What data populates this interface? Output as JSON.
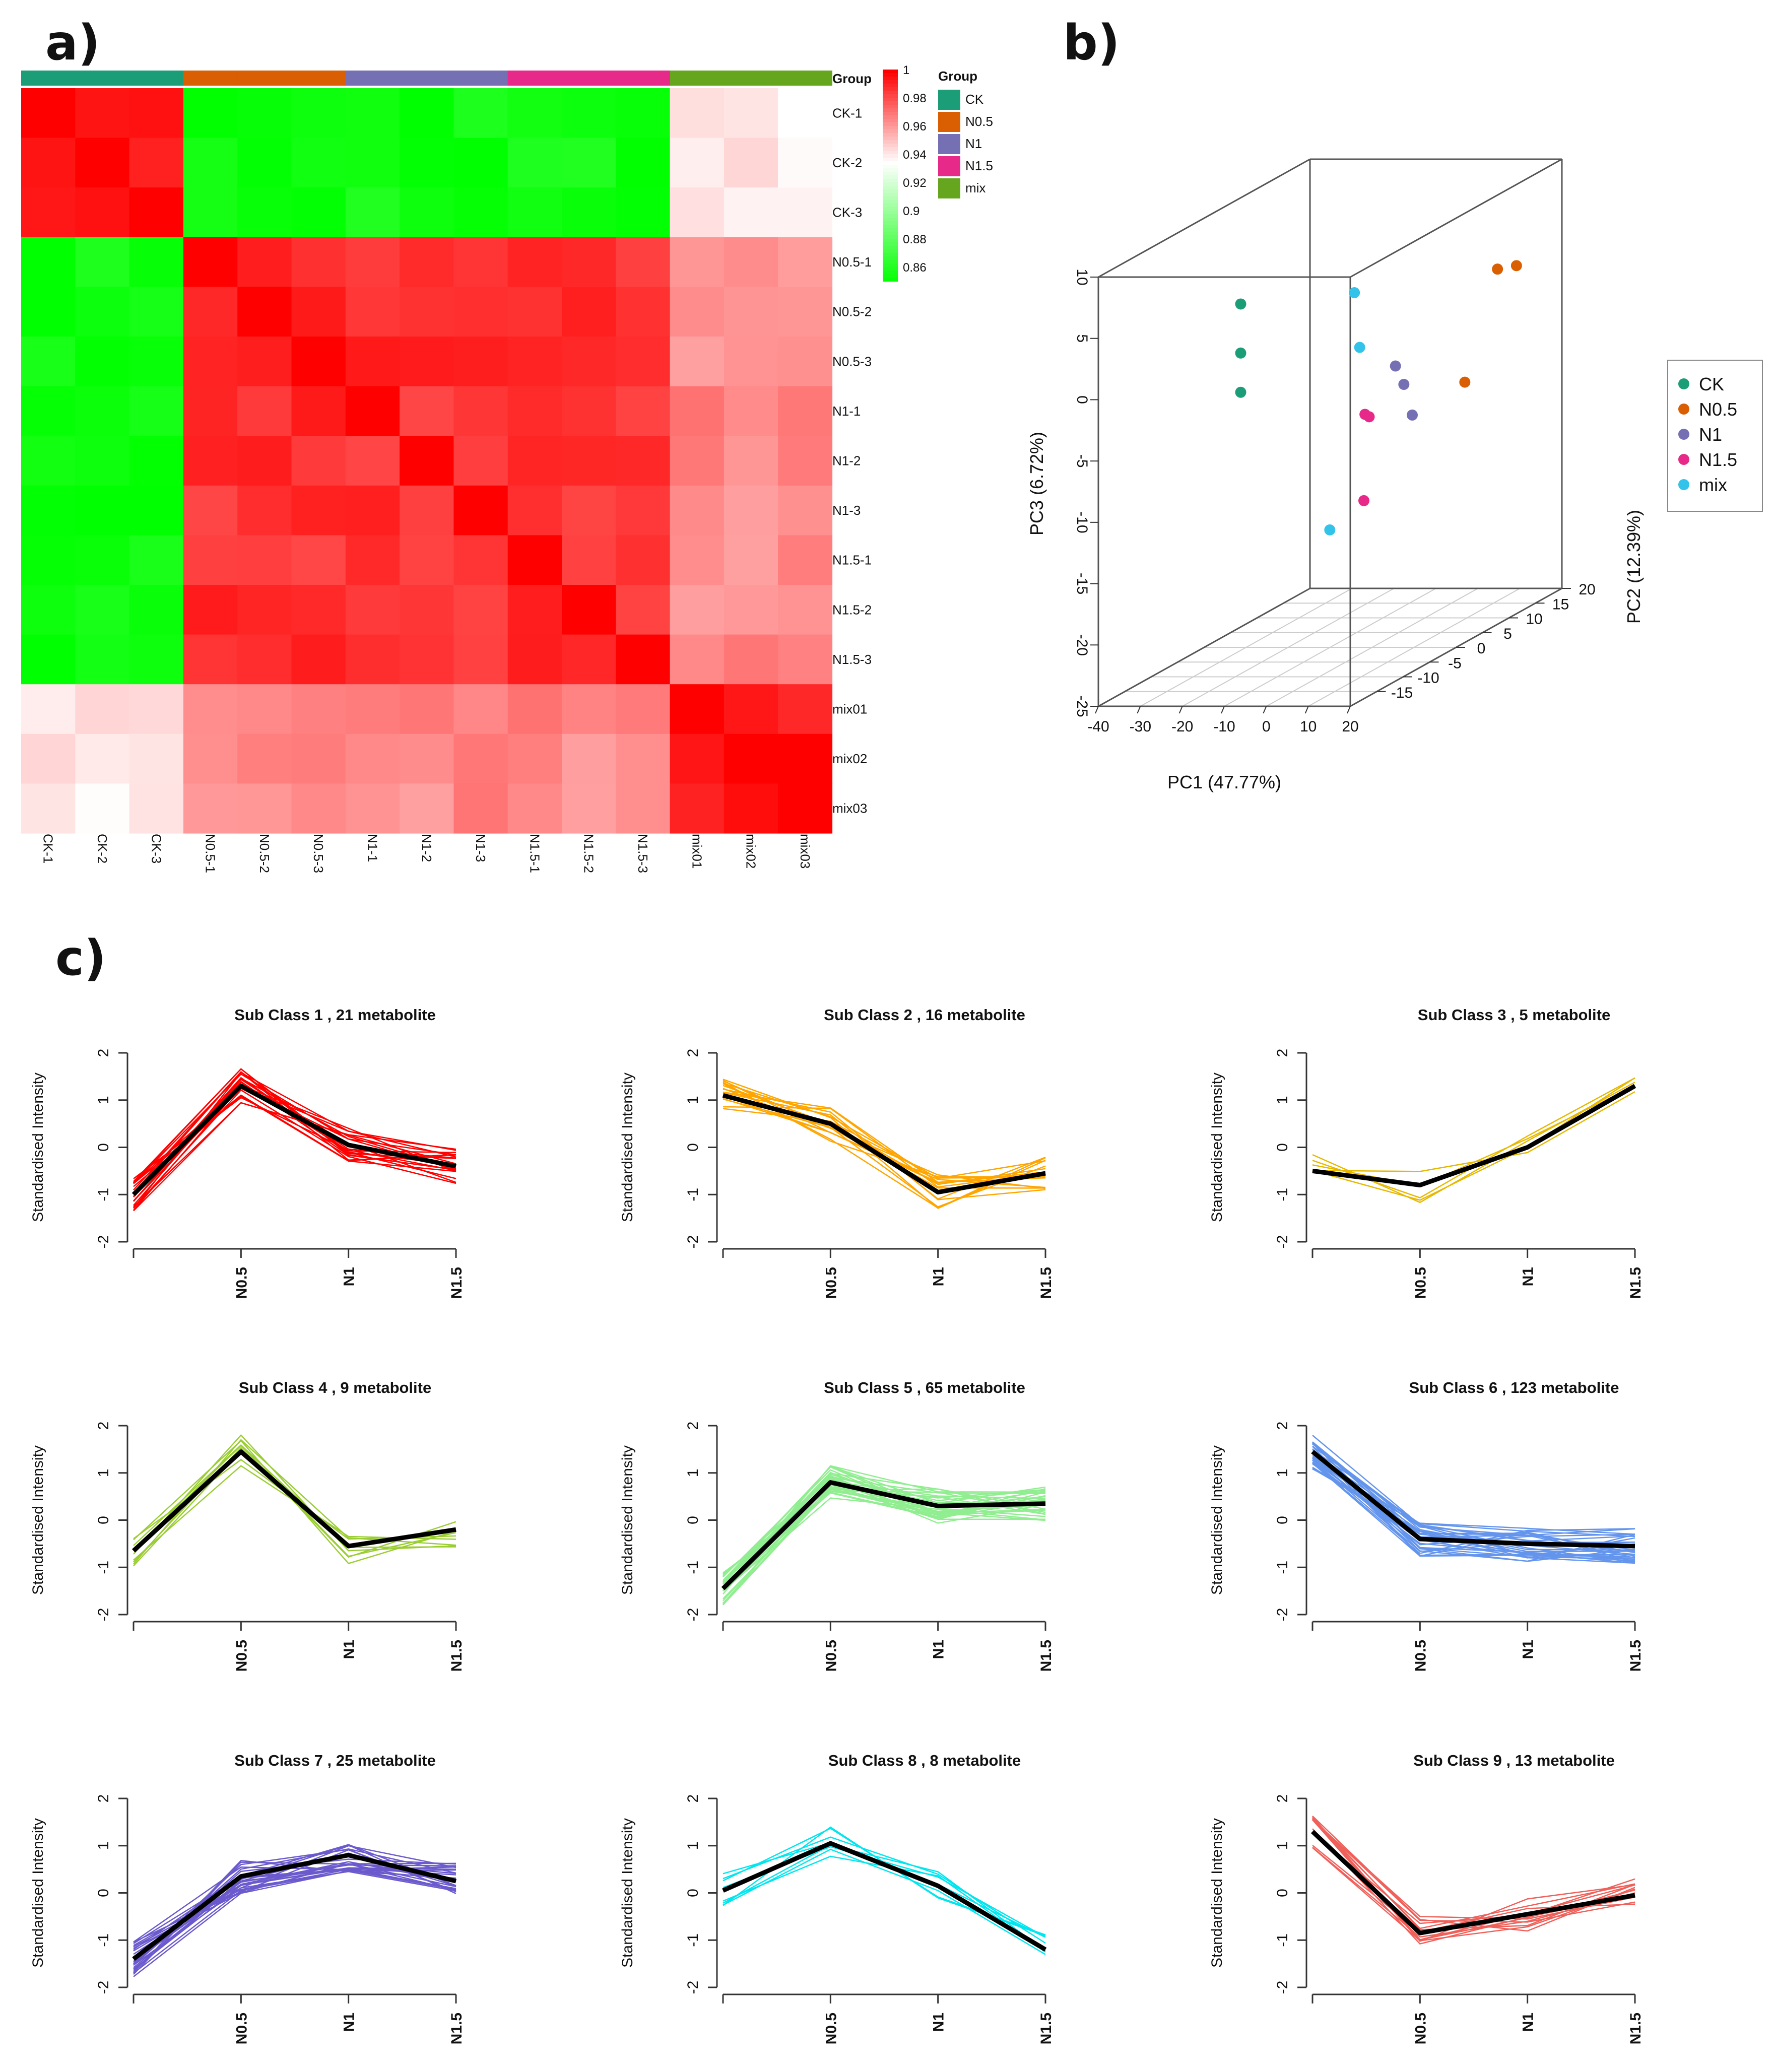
{
  "panels": {
    "a": "a)",
    "b": "b)",
    "c": "c)"
  },
  "group_colors": {
    "CK": "#1b9e77",
    "N0.5": "#d95f02",
    "N1": "#7570b3",
    "N1.5": "#e7298a",
    "mix": "#66a61e"
  },
  "chart_data": [
    {
      "type": "heatmap",
      "samples": [
        "CK-1",
        "CK-2",
        "CK-3",
        "N0.5-1",
        "N0.5-2",
        "N0.5-3",
        "N1-1",
        "N1-2",
        "N1-3",
        "N1.5-1",
        "N1.5-2",
        "N1.5-3",
        "mix01",
        "mix02",
        "mix03"
      ],
      "groups": [
        "CK",
        "CK",
        "CK",
        "N0.5",
        "N0.5",
        "N0.5",
        "N1",
        "N1",
        "N1",
        "N1.5",
        "N1.5",
        "N1.5",
        "mix",
        "mix",
        "mix"
      ],
      "scale_ticks": [
        "1",
        "0.98",
        "0.96",
        "0.94",
        "0.92",
        "0.9",
        "0.88",
        "0.86"
      ],
      "scale_range": [
        0.85,
        1.0
      ],
      "group_bar_label": "Group",
      "legend_title": "Group",
      "legend_entries": [
        "CK",
        "N0.5",
        "N1",
        "N1.5",
        "mix"
      ],
      "block_values": {
        "CK-CK": 0.995,
        "CK-N": 0.855,
        "CK-mix": 0.94,
        "N-N": 0.988,
        "N-mix": 0.965,
        "mix-mix": 0.995
      }
    },
    {
      "type": "scatter",
      "subtype": "3d-pca",
      "xlabel": "PC1 (47.77%)",
      "ylabel": "PC2 (12.39%)",
      "zlabel": "PC3 (6.72%)",
      "x_ticks": [
        "-40",
        "-30",
        "-20",
        "-10",
        "0",
        "10",
        "20"
      ],
      "y_ticks": [
        "-15",
        "-10",
        "-5",
        "0",
        "5",
        "10",
        "15",
        "20"
      ],
      "z_ticks": [
        "-25",
        "-20",
        "-15",
        "-10",
        "-5",
        "0",
        "5",
        "10"
      ],
      "xlim": [
        -40,
        20
      ],
      "ylim": [
        -20,
        20
      ],
      "zlim": [
        -25,
        10
      ],
      "legend": [
        "CK",
        "N0.5",
        "N1",
        "N1.5",
        "mix"
      ],
      "points": [
        {
          "group": "CK",
          "x": -25,
          "y": -5,
          "z": 4.2
        },
        {
          "group": "CK",
          "x": -25,
          "y": -5,
          "z": 0.2
        },
        {
          "group": "CK",
          "x": -25,
          "y": -5,
          "z": -3.0
        },
        {
          "group": "N0.5",
          "x": 16,
          "y": 11,
          "z": 3.2
        },
        {
          "group": "N0.5",
          "x": 18,
          "y": 13,
          "z": 3.0
        },
        {
          "group": "N0.5",
          "x": 12,
          "y": 8,
          "z": -5.3
        },
        {
          "group": "N1",
          "x": -2,
          "y": 6,
          "z": -3.5
        },
        {
          "group": "N1",
          "x": 0,
          "y": 6,
          "z": -5.0
        },
        {
          "group": "N1",
          "x": 2,
          "y": 6,
          "z": -7.5
        },
        {
          "group": "N1.5",
          "x": -8,
          "y": 5,
          "z": -7.2
        },
        {
          "group": "N1.5",
          "x": -7,
          "y": 5,
          "z": -7.4
        },
        {
          "group": "N1.5",
          "x": -7,
          "y": 4,
          "z": -14.0
        },
        {
          "group": "mix",
          "x": -8,
          "y": 3,
          "z": 3.2
        },
        {
          "group": "mix",
          "x": -8,
          "y": 4,
          "z": -1.5
        },
        {
          "group": "mix",
          "x": 0,
          "y": -8,
          "z": -13.5
        }
      ]
    },
    {
      "type": "line",
      "title": "Sub Class  1 , 21 metabolite",
      "color": "#ff0000",
      "categories": [
        "",
        "N0.5",
        "N1",
        "N1.5"
      ],
      "ylabel": "Standardised Intensity",
      "ylim": [
        -2,
        2
      ],
      "y_ticks": [
        "-2",
        "-1",
        "0",
        "1",
        "2"
      ],
      "series": [
        {
          "name": "mean",
          "values": [
            -1.0,
            1.3,
            0.05,
            -0.4
          ]
        }
      ],
      "member_lines": 21
    },
    {
      "type": "line",
      "title": "Sub Class  4 , 9 metabolite",
      "color": "#9acd32",
      "categories": [
        "",
        "N0.5",
        "N1",
        "N1.5"
      ],
      "ylabel": "Standardised Intensity",
      "ylim": [
        -2,
        2
      ],
      "y_ticks": [
        "-2",
        "-1",
        "0",
        "1",
        "2"
      ],
      "series": [
        {
          "name": "mean",
          "values": [
            -0.65,
            1.45,
            -0.55,
            -0.2
          ]
        }
      ],
      "member_lines": 9
    },
    {
      "type": "line",
      "title": "Sub Class  7 , 25 metabolite",
      "color": "#6a5acd",
      "categories": [
        "",
        "N0.5",
        "N1",
        "N1.5"
      ],
      "ylabel": "Standardised Intensity",
      "ylim": [
        -2,
        2
      ],
      "y_ticks": [
        "-2",
        "-1",
        "0",
        "1",
        "2"
      ],
      "series": [
        {
          "name": "mean",
          "values": [
            -1.4,
            0.35,
            0.8,
            0.25
          ]
        }
      ],
      "member_lines": 25
    },
    {
      "type": "line",
      "title": "Sub Class  2 , 16 metabolite",
      "color": "#ffa500",
      "categories": [
        "",
        "N0.5",
        "N1",
        "N1.5"
      ],
      "ylabel": "Standardised Intensity",
      "ylim": [
        -2,
        2
      ],
      "y_ticks": [
        "-2",
        "-1",
        "0",
        "1",
        "2"
      ],
      "series": [
        {
          "name": "mean",
          "values": [
            1.1,
            0.5,
            -0.95,
            -0.55
          ]
        }
      ],
      "member_lines": 16
    },
    {
      "type": "line",
      "title": "Sub Class  5 , 65 metabolite",
      "color": "#90ee90",
      "categories": [
        "",
        "N0.5",
        "N1",
        "N1.5"
      ],
      "ylabel": "Standardised Intensity",
      "ylim": [
        -2,
        2
      ],
      "y_ticks": [
        "-2",
        "-1",
        "0",
        "1",
        "2"
      ],
      "series": [
        {
          "name": "mean",
          "values": [
            -1.45,
            0.8,
            0.3,
            0.35
          ]
        }
      ],
      "member_lines": 65
    },
    {
      "type": "line",
      "title": "Sub Class  8 , 8 metabolite",
      "color": "#00e5ee",
      "categories": [
        "",
        "N0.5",
        "N1",
        "N1.5"
      ],
      "ylabel": "Standardised Intensity",
      "ylim": [
        -2,
        2
      ],
      "y_ticks": [
        "-2",
        "-1",
        "0",
        "1",
        "2"
      ],
      "series": [
        {
          "name": "mean",
          "values": [
            0.05,
            1.05,
            0.15,
            -1.2
          ]
        }
      ],
      "member_lines": 8
    },
    {
      "type": "line",
      "title": "Sub Class  3 , 5 metabolite",
      "color": "#e6b800",
      "categories": [
        "",
        "N0.5",
        "N1",
        "N1.5"
      ],
      "ylabel": "Standardised Intensity",
      "ylim": [
        -2,
        2
      ],
      "y_ticks": [
        "-2",
        "-1",
        "0",
        "1",
        "2"
      ],
      "series": [
        {
          "name": "mean",
          "values": [
            -0.5,
            -0.8,
            0.0,
            1.3
          ]
        }
      ],
      "member_lines": 5
    },
    {
      "type": "line",
      "title": "Sub Class  6 , 123 metabolite",
      "color": "#6495ed",
      "categories": [
        "",
        "N0.5",
        "N1",
        "N1.5"
      ],
      "ylabel": "Standardised Intensity",
      "ylim": [
        -2,
        2
      ],
      "y_ticks": [
        "-2",
        "-1",
        "0",
        "1",
        "2"
      ],
      "series": [
        {
          "name": "mean",
          "values": [
            1.45,
            -0.4,
            -0.5,
            -0.55
          ]
        }
      ],
      "member_lines": 123
    },
    {
      "type": "line",
      "title": "Sub Class  9 , 13 metabolite",
      "color": "#f0605a",
      "categories": [
        "",
        "N0.5",
        "N1",
        "N1.5"
      ],
      "ylabel": "Standardised Intensity",
      "ylim": [
        -2,
        2
      ],
      "y_ticks": [
        "-2",
        "-1",
        "0",
        "1",
        "2"
      ],
      "series": [
        {
          "name": "mean",
          "values": [
            1.3,
            -0.85,
            -0.45,
            -0.05
          ]
        }
      ],
      "member_lines": 13
    }
  ]
}
